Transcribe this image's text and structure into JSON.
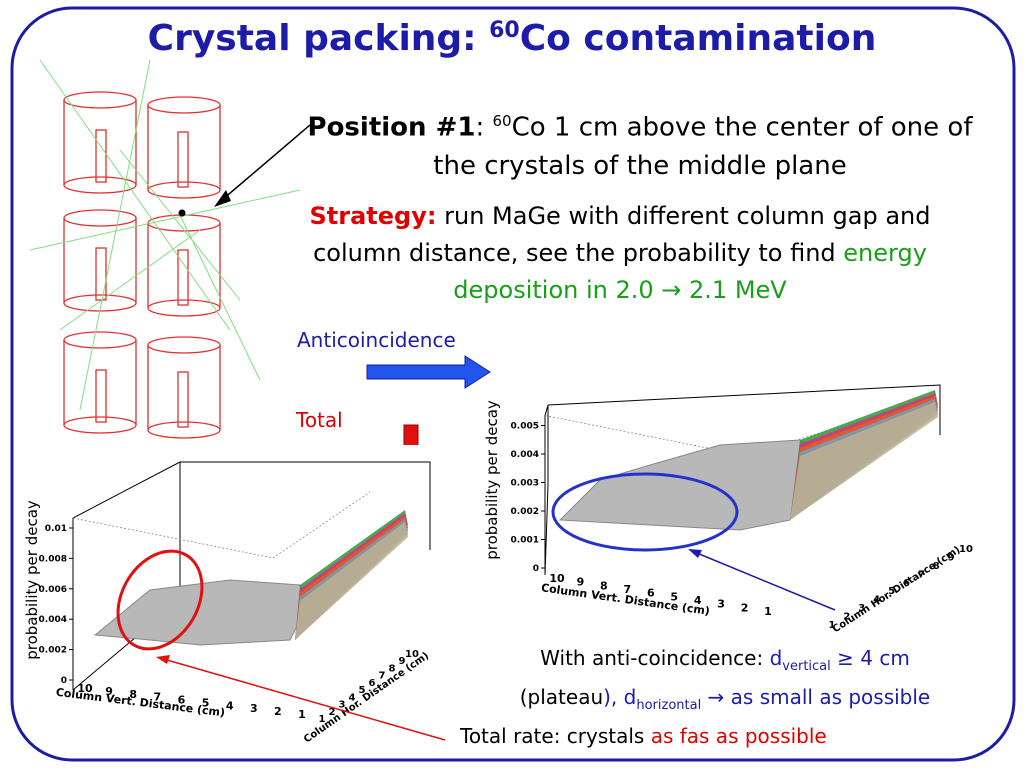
{
  "title": {
    "pre": "Crystal packing: ",
    "sup": "60",
    "post": "Co contamination"
  },
  "position": {
    "label": "Position #1",
    "colon": ": ",
    "sup": "60",
    "text": "Co 1 cm above the center of one of the crystals of the middle plane"
  },
  "strategy": {
    "label": "Strategy:",
    "text": " run MaGe with different column gap and column distance, see the probability to find ",
    "highlight": "energy deposition in 2.0 → 2.1 MeV"
  },
  "labels": {
    "anticoincidence": "Anticoincidence",
    "total": "Total"
  },
  "caption_anti": {
    "a": "With anti-coincidence: ",
    "b": "d",
    "b_sub": "vertical",
    "c": " ≥ 4 cm",
    "d": "(plateau",
    "e": "), d",
    "e_sub": "horizontal",
    "f": " → as small as possible"
  },
  "caption_total": {
    "a": "Total rate: crystals ",
    "b": "as fas as possible"
  },
  "plots": [
    {
      "y_title": "probability per decay",
      "yticks": [
        "0",
        "0.002",
        "0.004",
        "0.006",
        "0.008",
        "0.01"
      ],
      "x_title": "Column Vert. Distance (cm)",
      "xticks": [
        "10",
        "9",
        "8",
        "7",
        "6",
        "5",
        "4",
        "3",
        "2",
        "1"
      ],
      "z_title": "Column Hor. Distance (cm)",
      "zticks": [
        "1",
        "2",
        "3",
        "4",
        "5",
        "6",
        "7",
        "8",
        "9",
        "10"
      ]
    },
    {
      "y_title": "probability per decay",
      "yticks": [
        "0",
        "0.001",
        "0.002",
        "0.003",
        "0.004",
        "0.005"
      ],
      "x_title": "Column Vert. Distance (cm)",
      "xticks": [
        "10",
        "9",
        "8",
        "7",
        "6",
        "5",
        "4",
        "3",
        "2",
        "1"
      ],
      "z_title": "Column Hor. Distance (cm)",
      "zticks": [
        "1",
        "2",
        "3",
        "4",
        "5",
        "6",
        "7",
        "8",
        "9",
        "10"
      ]
    }
  ]
}
